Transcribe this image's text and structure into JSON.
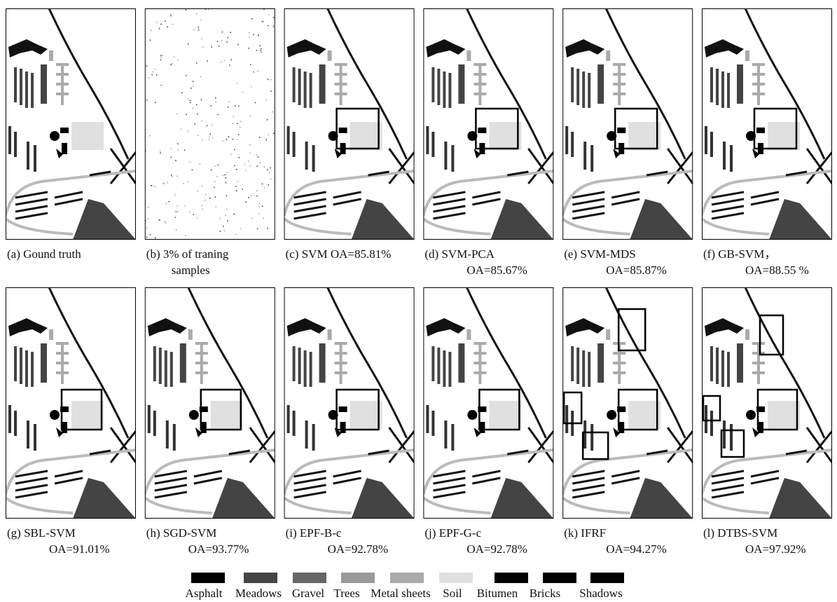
{
  "panels": [
    {
      "caption": [
        "(a) Gound truth"
      ]
    },
    {
      "caption": [
        "(b) 3% of traning",
        "samples"
      ]
    },
    {
      "caption": [
        "(c) SVM OA=85.81%"
      ]
    },
    {
      "caption": [
        "(d) SVM-PCA",
        "OA=85.67%"
      ]
    },
    {
      "caption": [
        "(e) SVM-MDS",
        "OA=85.87%"
      ]
    },
    {
      "caption": [
        "(f) GB-SVM，",
        "OA=88.55 %"
      ]
    },
    {
      "caption": [
        "(g) SBL-SVM",
        "OA=91.01%"
      ]
    },
    {
      "caption": [
        "(h) SGD-SVM",
        "OA=93.77%"
      ]
    },
    {
      "caption": [
        "(i) EPF-B-c",
        "OA=92.78%"
      ]
    },
    {
      "caption": [
        "(j) EPF-G-c",
        "OA=92.78%"
      ]
    },
    {
      "caption": [
        "(k) IFRF",
        "OA=94.27%"
      ]
    },
    {
      "caption": [
        "(l) DTBS-SVM",
        "OA=97.92%"
      ]
    }
  ],
  "legend": [
    {
      "label": "Asphalt",
      "color": "#000000"
    },
    {
      "label": "Meadows",
      "color": "#444444"
    },
    {
      "label": "Gravel",
      "color": "#666666"
    },
    {
      "label": "Trees",
      "color": "#999999"
    },
    {
      "label": "Metal sheets",
      "color": "#aaaaaa"
    },
    {
      "label": "Soil",
      "color": "#e0e0e0"
    },
    {
      "label": "Bitumen",
      "color": "#000000"
    },
    {
      "label": "Bricks",
      "color": "#000000"
    },
    {
      "label": "Shadows",
      "color": "#000000"
    }
  ]
}
